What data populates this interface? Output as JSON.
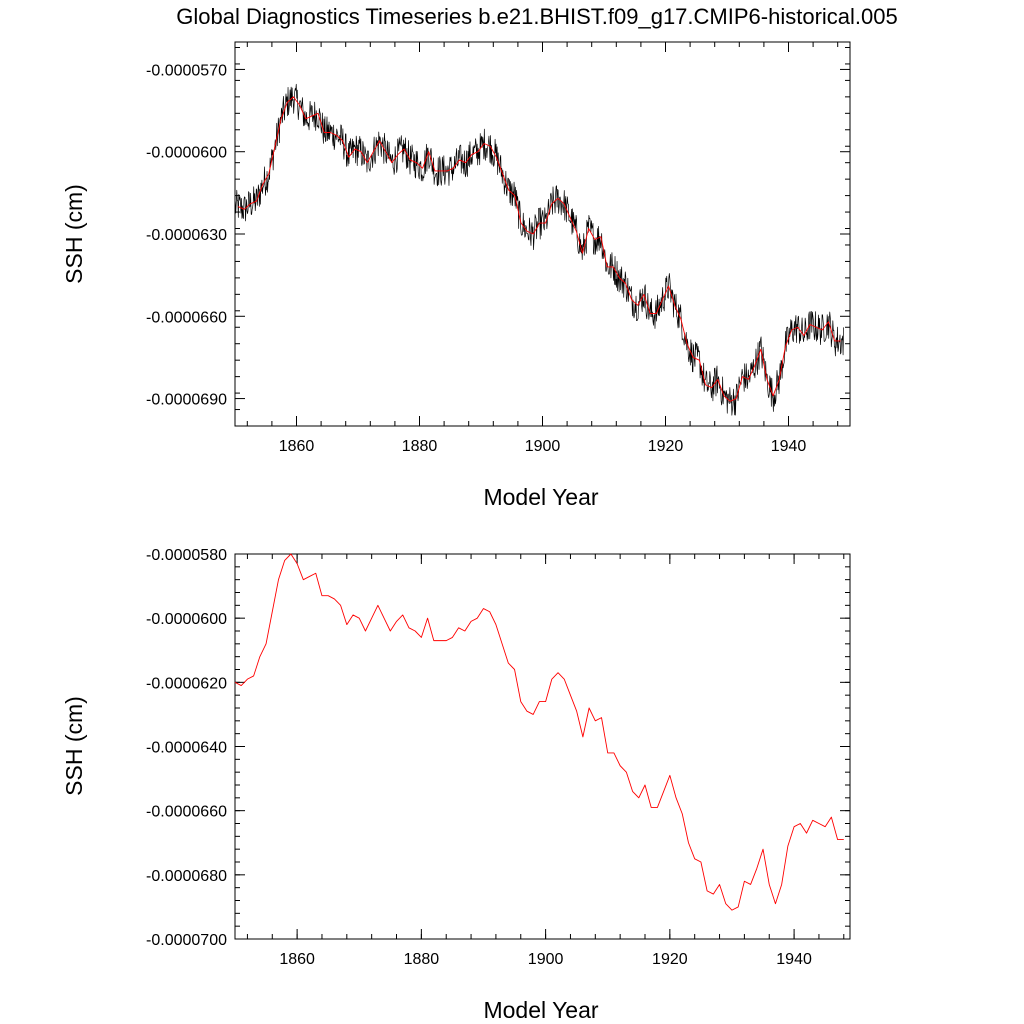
{
  "title": "Global Diagnostics Timeseries b.e21.BHIST.f09_g17.CMIP6-historical.005",
  "colors": {
    "monthly": "#000000",
    "annual": "#ff0000",
    "axes": "#000000",
    "background": "#ffffff"
  },
  "chart_data": [
    {
      "type": "line",
      "name": "monthly-and-annual",
      "xlabel": "Model Year",
      "ylabel": "SSH (cm)",
      "xlim": [
        1850,
        1950
      ],
      "ylim": [
        -7e-05,
        -5.6e-05
      ],
      "xticks": [
        1860,
        1880,
        1900,
        1920,
        1940
      ],
      "xtick_labels": [
        "1860",
        "1880",
        "1900",
        "1920",
        "1940"
      ],
      "yticks": [
        -5.7e-05,
        -6e-05,
        -6.3e-05,
        -6.6e-05,
        -6.9e-05
      ],
      "ytick_labels": [
        "-0.0000570",
        "-0.0000600",
        "-0.0000630",
        "-0.0000660",
        "-0.0000690"
      ],
      "series": [
        {
          "name": "monthly",
          "color": "#000000",
          "source": "annual_values_with_monthly_noise",
          "noise_amplitude": 6e-07
        },
        {
          "name": "annual",
          "color": "#ff0000",
          "source": "annual_values"
        }
      ]
    },
    {
      "type": "line",
      "name": "annual",
      "xlabel": "Model Year",
      "ylabel": "SSH (cm)",
      "xlim": [
        1850,
        1949
      ],
      "ylim": [
        -7e-05,
        -5.8e-05
      ],
      "xticks": [
        1860,
        1880,
        1900,
        1920,
        1940
      ],
      "xtick_labels": [
        "1860",
        "1880",
        "1900",
        "1920",
        "1940"
      ],
      "yticks": [
        -5.8e-05,
        -6e-05,
        -6.2e-05,
        -6.4e-05,
        -6.6e-05,
        -6.8e-05,
        -7e-05
      ],
      "ytick_labels": [
        "-0.0000580",
        "-0.0000600",
        "-0.0000620",
        "-0.0000640",
        "-0.0000660",
        "-0.0000680",
        "-0.0000700"
      ],
      "series": [
        {
          "name": "annual",
          "color": "#ff0000",
          "source": "annual_values"
        }
      ]
    }
  ],
  "annual_years_start": 1850,
  "annual_values": [
    -6.2e-05,
    -6.21e-05,
    -6.19e-05,
    -6.18e-05,
    -6.12e-05,
    -6.08e-05,
    -5.98e-05,
    -5.88e-05,
    -5.82e-05,
    -5.8e-05,
    -5.83e-05,
    -5.88e-05,
    -5.87e-05,
    -5.86e-05,
    -5.93e-05,
    -5.93e-05,
    -5.94e-05,
    -5.96e-05,
    -6.02e-05,
    -5.99e-05,
    -6e-05,
    -6.04e-05,
    -6e-05,
    -5.96e-05,
    -6e-05,
    -6.04e-05,
    -6.01e-05,
    -5.99e-05,
    -6.03e-05,
    -6.04e-05,
    -6.06e-05,
    -6e-05,
    -6.07e-05,
    -6.07e-05,
    -6.07e-05,
    -6.06e-05,
    -6.03e-05,
    -6.04e-05,
    -6.01e-05,
    -6e-05,
    -5.97e-05,
    -5.98e-05,
    -6.02e-05,
    -6.08e-05,
    -6.14e-05,
    -6.16e-05,
    -6.26e-05,
    -6.29e-05,
    -6.3e-05,
    -6.26e-05,
    -6.26e-05,
    -6.19e-05,
    -6.17e-05,
    -6.19e-05,
    -6.24e-05,
    -6.29e-05,
    -6.37e-05,
    -6.28e-05,
    -6.32e-05,
    -6.31e-05,
    -6.42e-05,
    -6.42e-05,
    -6.46e-05,
    -6.48e-05,
    -6.54e-05,
    -6.56e-05,
    -6.52e-05,
    -6.59e-05,
    -6.59e-05,
    -6.54e-05,
    -6.49e-05,
    -6.56e-05,
    -6.61e-05,
    -6.7e-05,
    -6.75e-05,
    -6.76e-05,
    -6.85e-05,
    -6.86e-05,
    -6.83e-05,
    -6.89e-05,
    -6.91e-05,
    -6.9e-05,
    -6.82e-05,
    -6.83e-05,
    -6.78e-05,
    -6.72e-05,
    -6.83e-05,
    -6.89e-05,
    -6.83e-05,
    -6.71e-05,
    -6.65e-05,
    -6.64e-05,
    -6.67e-05,
    -6.63e-05,
    -6.64e-05,
    -6.65e-05,
    -6.62e-05,
    -6.69e-05,
    -6.69e-05
  ]
}
